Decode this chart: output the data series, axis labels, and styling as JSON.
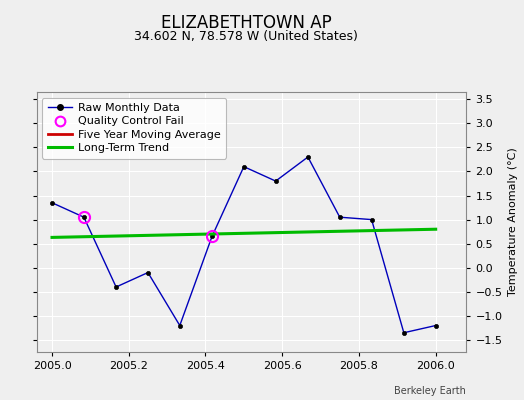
{
  "title": "ELIZABETHTOWN AP",
  "subtitle": "34.602 N, 78.578 W (United States)",
  "credit": "Berkeley Earth",
  "x_data": [
    2005.0,
    2005.083,
    2005.167,
    2005.25,
    2005.333,
    2005.417,
    2005.5,
    2005.583,
    2005.667,
    2005.75,
    2005.833,
    2005.917,
    2006.0
  ],
  "y_raw": [
    1.35,
    1.05,
    -0.4,
    -0.1,
    -1.2,
    0.65,
    2.1,
    1.8,
    2.3,
    1.05,
    1.0,
    -1.35,
    -1.2
  ],
  "qc_fail_indices": [
    1,
    5
  ],
  "trend_x": [
    2005.0,
    2006.0
  ],
  "trend_y": [
    0.63,
    0.8
  ],
  "xlim": [
    2004.96,
    2006.08
  ],
  "ylim": [
    -1.75,
    3.65
  ],
  "yticks": [
    -1.5,
    -1.0,
    -0.5,
    0.0,
    0.5,
    1.0,
    1.5,
    2.0,
    2.5,
    3.0,
    3.5
  ],
  "xticks": [
    2005.0,
    2005.2,
    2005.4,
    2005.6,
    2005.8,
    2006.0
  ],
  "raw_color": "#0000bb",
  "trend_color": "#00bb00",
  "moving_avg_color": "#cc0000",
  "qc_color": "#ff00ff",
  "bg_color": "#efefef",
  "plot_bg_color": "#efefef",
  "grid_color": "#ffffff",
  "ylabel": "Temperature Anomaly (°C)",
  "title_fontsize": 12,
  "subtitle_fontsize": 9,
  "tick_fontsize": 8,
  "legend_fontsize": 8,
  "ylabel_fontsize": 8
}
